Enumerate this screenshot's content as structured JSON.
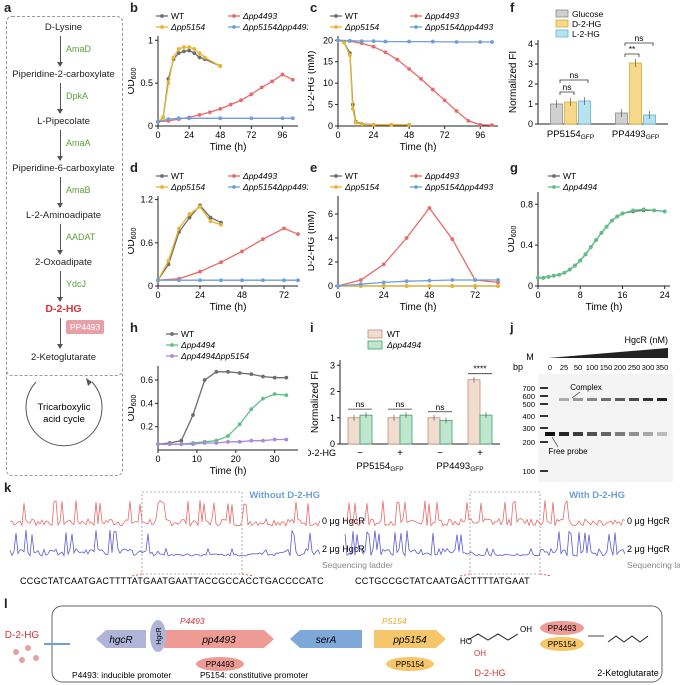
{
  "panel_labels": [
    "a",
    "b",
    "c",
    "d",
    "e",
    "f",
    "g",
    "h",
    "i",
    "j",
    "k",
    "l"
  ],
  "pathway": {
    "metabolites": [
      "D-Lysine",
      "Piperidine-2-carboxylate",
      "L-Pipecolate",
      "Piperidine-6-carboxylate",
      "L-2-Aminoadipate",
      "2-Oxoadipate",
      "D-2-HG",
      "2-Ketoglutarate"
    ],
    "enzymes": [
      "AmaD",
      "DpkA",
      "AmaA",
      "AmaB",
      "AADAT",
      "YdcJ"
    ],
    "pp4493_box": "PP4493",
    "cycle_label": "Tricarboxylic acid cycle",
    "colors": {
      "enzyme": "#5b9e3a",
      "d2hg": "#d6333a",
      "pp4493": "#e8a0a8"
    }
  },
  "colors": {
    "wt": "#6d6d6d",
    "pp4493": "#e86a6a",
    "pp5154": "#e8b52f",
    "double": "#6f9fd8",
    "pp4494": "#5fbf8a",
    "double2": "#a98ad6",
    "glucose": "#d0d0d0",
    "d2hg_bar": "#f6d88a",
    "l2hg_bar": "#b7e2ef"
  },
  "chart_data": [
    {
      "id": "b",
      "type": "line",
      "xlabel": "Time (h)",
      "ylabel": "OD600",
      "xlim": [
        0,
        108
      ],
      "ylim": [
        0,
        1.05
      ],
      "xticks": [
        0,
        24,
        48,
        72,
        96
      ],
      "yticks": [
        0.0,
        0.5,
        1.0
      ],
      "legend": [
        "WT",
        "Δpp4493",
        "Δpp5154",
        "Δpp5154Δpp4493"
      ],
      "series": [
        {
          "name": "WT",
          "x": [
            0,
            4,
            8,
            12,
            16,
            20,
            24,
            28,
            32,
            36,
            48
          ],
          "y": [
            0.05,
            0.1,
            0.55,
            0.78,
            0.85,
            0.87,
            0.88,
            0.85,
            0.8,
            0.78,
            0.7
          ]
        },
        {
          "name": "Δpp4493",
          "x": [
            0,
            8,
            16,
            24,
            32,
            40,
            48,
            56,
            64,
            72,
            80,
            88,
            96,
            104
          ],
          "y": [
            0.05,
            0.06,
            0.08,
            0.1,
            0.13,
            0.16,
            0.2,
            0.25,
            0.3,
            0.37,
            0.45,
            0.52,
            0.6,
            0.54
          ]
        },
        {
          "name": "Δpp5154",
          "x": [
            0,
            4,
            8,
            12,
            16,
            20,
            24,
            28,
            32,
            36,
            48
          ],
          "y": [
            0.05,
            0.1,
            0.5,
            0.8,
            0.9,
            0.92,
            0.92,
            0.9,
            0.85,
            0.8,
            0.7
          ]
        },
        {
          "name": "Δpp5154Δpp4493",
          "x": [
            0,
            8,
            16,
            24,
            48,
            72,
            96,
            104
          ],
          "y": [
            0.05,
            0.08,
            0.09,
            0.09,
            0.09,
            0.09,
            0.09,
            0.09
          ]
        }
      ]
    },
    {
      "id": "c",
      "type": "line",
      "xlabel": "Time (h)",
      "ylabel": "D-2-HG (mM)",
      "xlim": [
        0,
        108
      ],
      "ylim": [
        0,
        21
      ],
      "xticks": [
        0,
        24,
        48,
        72,
        96
      ],
      "yticks": [
        0,
        5,
        10,
        15,
        20
      ],
      "legend": [
        "WT",
        "Δpp4493",
        "Δpp5154",
        "Δpp5154Δpp4493"
      ],
      "series": [
        {
          "name": "WT",
          "x": [
            0,
            4,
            8,
            10,
            12,
            16,
            24,
            36,
            48
          ],
          "y": [
            20,
            19.5,
            17,
            5,
            1,
            0.5,
            0.3,
            0.3,
            0.3
          ]
        },
        {
          "name": "Δpp4493",
          "x": [
            0,
            8,
            16,
            24,
            32,
            40,
            48,
            56,
            64,
            72,
            80,
            88,
            96,
            104
          ],
          "y": [
            20,
            19.8,
            19.3,
            18.5,
            17.2,
            15.5,
            13.3,
            11,
            8.5,
            6,
            3.5,
            1.2,
            0.3,
            0.2
          ]
        },
        {
          "name": "Δpp5154",
          "x": [
            0,
            4,
            8,
            10,
            12,
            16,
            24,
            36,
            48
          ],
          "y": [
            20,
            19.5,
            16.5,
            4,
            0.8,
            0.4,
            0.3,
            0.3,
            0.3
          ]
        },
        {
          "name": "Δpp5154Δpp4493",
          "x": [
            0,
            8,
            16,
            24,
            32,
            48,
            64,
            80,
            96,
            104
          ],
          "y": [
            20,
            19.9,
            19.8,
            19.8,
            19.7,
            19.7,
            19.7,
            19.6,
            19.6,
            19.6
          ]
        }
      ]
    },
    {
      "id": "d",
      "type": "line",
      "xlabel": "Time (h)",
      "ylabel": "OD600",
      "xlim": [
        0,
        80
      ],
      "ylim": [
        0,
        1.25
      ],
      "xticks": [
        0,
        24,
        48,
        72
      ],
      "yticks": [
        0.0,
        0.6,
        1.2
      ],
      "legend": [
        "WT",
        "Δpp4493",
        "Δpp5154",
        "Δpp5154Δpp4493"
      ],
      "series": [
        {
          "name": "WT",
          "x": [
            0,
            6,
            12,
            18,
            24,
            30,
            36
          ],
          "y": [
            0.08,
            0.3,
            0.75,
            0.95,
            1.12,
            0.95,
            0.88
          ]
        },
        {
          "name": "Δpp4493",
          "x": [
            0,
            12,
            24,
            36,
            48,
            60,
            72,
            80
          ],
          "y": [
            0.08,
            0.1,
            0.2,
            0.33,
            0.48,
            0.65,
            0.8,
            0.72
          ]
        },
        {
          "name": "Δpp5154",
          "x": [
            0,
            6,
            12,
            18,
            24,
            30,
            36
          ],
          "y": [
            0.08,
            0.35,
            0.8,
            1.0,
            1.1,
            0.9,
            0.85
          ]
        },
        {
          "name": "Δpp5154Δpp4493",
          "x": [
            0,
            12,
            24,
            36,
            48,
            60,
            72,
            80
          ],
          "y": [
            0.08,
            0.08,
            0.08,
            0.08,
            0.08,
            0.08,
            0.08,
            0.08
          ]
        }
      ]
    },
    {
      "id": "e",
      "type": "line",
      "xlabel": "Time (h)",
      "ylabel": "D-2-HG (mM)",
      "xlim": [
        0,
        84
      ],
      "ylim": [
        0,
        7.5
      ],
      "xticks": [
        0,
        24,
        48,
        72
      ],
      "yticks": [
        0,
        2,
        4,
        6
      ],
      "legend": [
        "WT",
        "Δpp4493",
        "Δpp5154",
        "Δpp5154Δpp4493"
      ],
      "series": [
        {
          "name": "WT",
          "x": [
            0,
            12,
            24,
            36,
            48,
            60,
            72,
            84
          ],
          "y": [
            0,
            0,
            0,
            0,
            0,
            0,
            0,
            0
          ]
        },
        {
          "name": "Δpp4493",
          "x": [
            0,
            12,
            24,
            36,
            48,
            60,
            72,
            84
          ],
          "y": [
            0,
            0.5,
            1.8,
            4,
            6.5,
            3.9,
            0.5,
            0.3
          ]
        },
        {
          "name": "Δpp5154",
          "x": [
            0,
            12,
            24,
            36,
            48,
            60,
            72,
            84
          ],
          "y": [
            0,
            0,
            0,
            0,
            0,
            0,
            0,
            0
          ]
        },
        {
          "name": "Δpp5154Δpp4493",
          "x": [
            0,
            12,
            24,
            36,
            48,
            60,
            72,
            84
          ],
          "y": [
            0,
            0.15,
            0.3,
            0.4,
            0.45,
            0.5,
            0.5,
            0.5
          ]
        }
      ]
    },
    {
      "id": "f",
      "type": "bar",
      "ylabel": "Normalized FI",
      "ylim": [
        0,
        4.2
      ],
      "yticks": [
        0,
        1,
        2,
        3,
        4
      ],
      "groups": [
        "PP5154GFP",
        "PP4493GFP"
      ],
      "legend": [
        "Glucose",
        "D-2-HG",
        "L-2-HG"
      ],
      "series": [
        {
          "name": "Glucose",
          "values": [
            1.0,
            0.55
          ]
        },
        {
          "name": "D-2-HG",
          "values": [
            1.1,
            3.05
          ]
        },
        {
          "name": "L-2-HG",
          "values": [
            1.15,
            0.45
          ]
        }
      ],
      "significance": [
        "ns",
        "ns",
        "ns",
        "**"
      ]
    },
    {
      "id": "g",
      "type": "line",
      "xlabel": "Time (h)",
      "ylabel": "OD600",
      "xlim": [
        0,
        25
      ],
      "ylim": [
        0,
        0.92
      ],
      "xticks": [
        0,
        8,
        16,
        24
      ],
      "yticks": [
        0.0,
        0.4,
        0.8
      ],
      "legend": [
        "WT",
        "Δpp4494"
      ],
      "series": [
        {
          "name": "WT",
          "x": [
            0,
            1,
            2,
            3,
            4,
            5,
            6,
            7,
            8,
            9,
            10,
            11,
            12,
            13,
            14,
            15,
            16,
            18,
            20,
            22,
            24
          ],
          "y": [
            0.08,
            0.08,
            0.09,
            0.1,
            0.11,
            0.13,
            0.16,
            0.2,
            0.25,
            0.31,
            0.38,
            0.45,
            0.52,
            0.58,
            0.64,
            0.68,
            0.71,
            0.73,
            0.74,
            0.74,
            0.73
          ]
        },
        {
          "name": "Δpp4494",
          "x": [
            0,
            1,
            2,
            3,
            4,
            5,
            6,
            7,
            8,
            9,
            10,
            11,
            12,
            13,
            14,
            15,
            16,
            18,
            20,
            22,
            24
          ],
          "y": [
            0.08,
            0.08,
            0.09,
            0.1,
            0.11,
            0.13,
            0.16,
            0.2,
            0.25,
            0.31,
            0.38,
            0.45,
            0.52,
            0.58,
            0.64,
            0.68,
            0.71,
            0.74,
            0.75,
            0.74,
            0.73
          ]
        }
      ]
    },
    {
      "id": "h",
      "type": "line",
      "xlabel": "Time (h)",
      "ylabel": "OD600",
      "xlim": [
        0,
        36
      ],
      "ylim": [
        0,
        0.72
      ],
      "xticks": [
        0,
        10,
        20,
        30
      ],
      "yticks": [
        0.2,
        0.4,
        0.6
      ],
      "legend": [
        "WT",
        "Δpp4494",
        "Δpp4494Δpp5154"
      ],
      "series": [
        {
          "name": "WT",
          "x": [
            0,
            3,
            6,
            9,
            12,
            15,
            18,
            21,
            24,
            27,
            30,
            33
          ],
          "y": [
            0.05,
            0.06,
            0.08,
            0.3,
            0.6,
            0.67,
            0.67,
            0.66,
            0.65,
            0.63,
            0.62,
            0.62
          ]
        },
        {
          "name": "Δpp4494",
          "x": [
            0,
            3,
            6,
            9,
            12,
            15,
            18,
            21,
            24,
            27,
            30,
            33
          ],
          "y": [
            0.05,
            0.05,
            0.05,
            0.06,
            0.07,
            0.08,
            0.12,
            0.22,
            0.35,
            0.44,
            0.48,
            0.47
          ]
        },
        {
          "name": "Δpp4494Δpp5154",
          "x": [
            0,
            3,
            6,
            9,
            12,
            15,
            18,
            21,
            24,
            27,
            30,
            33
          ],
          "y": [
            0.05,
            0.05,
            0.05,
            0.05,
            0.06,
            0.06,
            0.07,
            0.07,
            0.08,
            0.08,
            0.09,
            0.09
          ]
        }
      ]
    },
    {
      "id": "i",
      "type": "bar",
      "ylabel": "Normalized FI",
      "ylim": [
        0,
        3.2
      ],
      "yticks": [
        0,
        1,
        2,
        3
      ],
      "categories": [
        "−",
        "+",
        "−",
        "+"
      ],
      "condition_label": "D-2-HG",
      "groups": [
        "PP5154GFP",
        "PP4493GFP"
      ],
      "legend": [
        "WT",
        "Δpp4494"
      ],
      "series": [
        {
          "name": "WT",
          "values": [
            1.0,
            1.0,
            1.0,
            2.45
          ]
        },
        {
          "name": "Δpp4494",
          "values": [
            1.1,
            1.1,
            0.9,
            1.1
          ]
        }
      ],
      "significance": [
        "ns",
        "ns",
        "ns",
        "****"
      ]
    }
  ],
  "gel": {
    "marker_lane": "M",
    "unit": "bp",
    "ladder": [
      "700",
      "600",
      "500",
      "400",
      "300",
      "200",
      "100"
    ],
    "protein": "HgcR (nM)",
    "concentrations": [
      "0",
      "25",
      "50",
      "100",
      "150",
      "200",
      "250",
      "300",
      "350"
    ],
    "complex_label": "Complex",
    "free_label": "Free probe"
  },
  "footprint": {
    "left": {
      "title": "Without D-2-HG",
      "label_0": "0 μg HgcR",
      "label_2": "2 μg HgcR",
      "ladder": "Sequencing ladder",
      "sequence": "CCGCTATCAATGACTTTTATGAATGAATTACCGCCACCTGACCCCATC"
    },
    "right": {
      "title": "With D-2-HG",
      "label_0": "0 μg HgcR",
      "label_2": "2 μg HgcR",
      "ladder": "Sequencing ladder",
      "sequence": "CCTGCCGCTATCAATGACTTTTATGAAT"
    }
  },
  "model": {
    "d2hg_label": "D-2-HG",
    "genes": [
      "hgcR",
      "pp4493",
      "serA",
      "pp5154"
    ],
    "protein_hgcr": "HgcR",
    "promoter_4493": "P4493",
    "promoter_5154": "P5154",
    "products": [
      "PP4493",
      "PP5154"
    ],
    "inducible": "P4493: inducible promoter",
    "constitutive": "P5154: constitutive promoter",
    "substrate": "D-2-HG",
    "product": "2-Ketoglutarate"
  }
}
